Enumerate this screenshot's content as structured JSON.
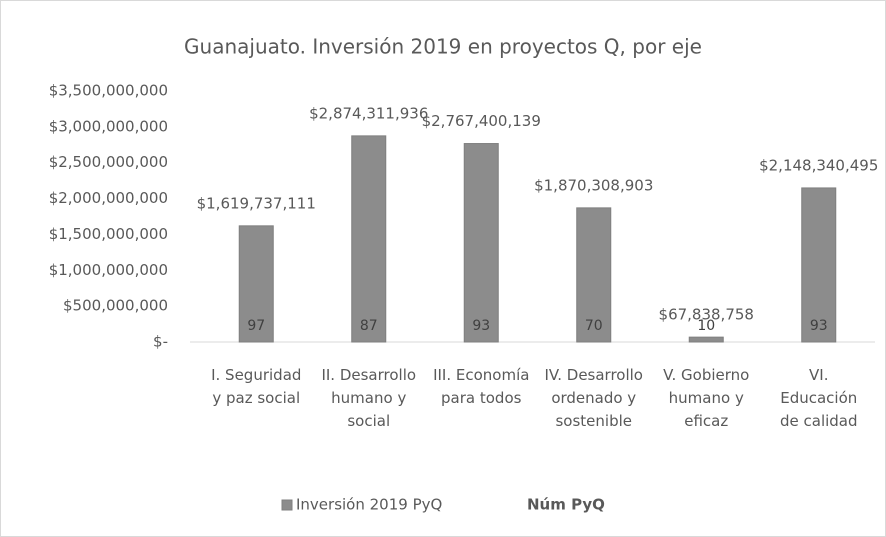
{
  "chart_data": {
    "type": "bar",
    "title": "Guanajuato. Inversión 2019 en proyectos Q, por eje",
    "categories": [
      "I. Seguridad y paz social",
      "II. Desarrollo humano y social",
      "III. Economía para todos",
      "IV. Desarrollo ordenado y sostenible",
      "V. Gobierno humano y eficaz",
      "VI. Educación de calidad"
    ],
    "series": [
      {
        "name": "Inversión 2019 PyQ",
        "color": "#8c8c8c",
        "values": [
          1619737111,
          2874311936,
          2767400139,
          1870308903,
          67838758,
          2148340495
        ],
        "value_labels": [
          "$1,619,737,111",
          "$2,874,311,936",
          "$2,767,400,139",
          "$1,870,308,903",
          "$67,838,758",
          "$2,148,340,495"
        ]
      },
      {
        "name": "Núm PyQ",
        "values": [
          97,
          87,
          93,
          70,
          10,
          93
        ]
      }
    ],
    "ylim": [
      0,
      3500000000
    ],
    "yticks": [
      {
        "value": 0,
        "label": "$-"
      },
      {
        "value": 500000000,
        "label": "$500,000,000"
      },
      {
        "value": 1000000000,
        "label": "$1,000,000,000"
      },
      {
        "value": 1500000000,
        "label": "$1,500,000,000"
      },
      {
        "value": 2000000000,
        "label": "$2,000,000,000"
      },
      {
        "value": 2500000000,
        "label": "$2,500,000,000"
      },
      {
        "value": 3000000000,
        "label": "$3,000,000,000"
      },
      {
        "value": 3500000000,
        "label": "$3,500,000,000"
      }
    ],
    "grid": false
  }
}
